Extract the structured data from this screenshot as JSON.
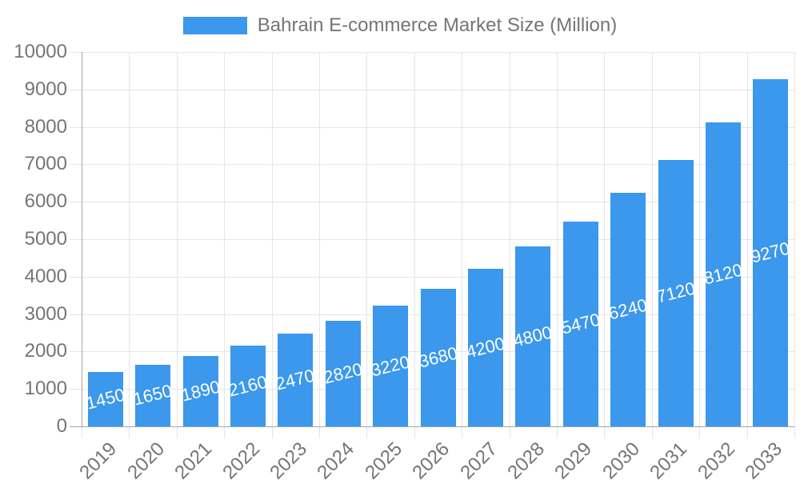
{
  "chart_data": {
    "type": "bar",
    "title": "Bahrain E-commerce Market Size (Million)",
    "categories": [
      "2019",
      "2020",
      "2021",
      "2022",
      "2023",
      "2024",
      "2025",
      "2026",
      "2027",
      "2028",
      "2029",
      "2030",
      "2031",
      "2032",
      "2033"
    ],
    "values": [
      1450,
      1650,
      1890,
      2160,
      2470,
      2820,
      3220,
      3680,
      4200,
      4800,
      5470,
      6240,
      7120,
      8120,
      9270
    ],
    "value_labels": [
      "1450",
      "1650",
      "1890",
      "2160",
      "2470",
      "2820",
      "3220",
      "3680",
      "4200",
      "4800",
      "5470",
      "6240",
      "7120",
      "8120",
      "9270"
    ],
    "xlabel": "",
    "ylabel": "",
    "ylim": [
      0,
      10000
    ],
    "ytick_step": 1000,
    "ytick_labels": [
      "0",
      "1000",
      "2000",
      "3000",
      "4000",
      "5000",
      "6000",
      "7000",
      "8000",
      "9000",
      "10000"
    ],
    "grid": true,
    "legend_position": "top",
    "colors": {
      "bar": "#3B98EC",
      "value_label": "#FFFFFF",
      "axis_text": "#757575",
      "grid_line": "#E5E5E5",
      "axis_line": "#A6A6A6",
      "background": "#FFFFFF"
    }
  }
}
